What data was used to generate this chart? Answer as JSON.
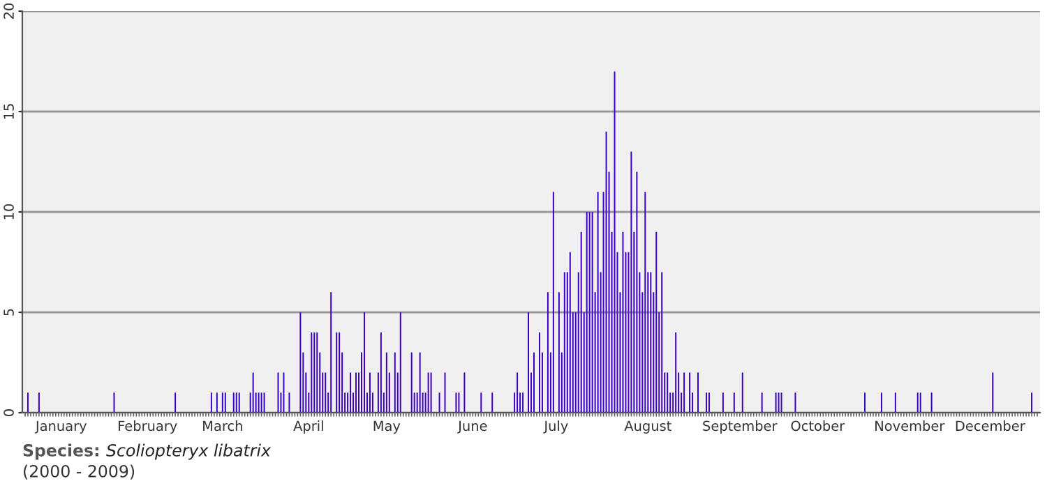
{
  "chart_data": {
    "type": "bar",
    "color": "#3a00c4",
    "categories": [
      null,
      null,
      null,
      null,
      null,
      null,
      null,
      null,
      null,
      null,
      null,
      null,
      null,
      "January",
      null,
      null,
      null,
      null,
      null,
      null,
      null,
      null,
      null,
      null,
      null,
      null,
      null,
      null,
      null,
      null,
      null,
      null,
      null,
      null,
      null,
      null,
      null,
      null,
      null,
      null,
      null,
      null,
      null,
      null,
      "February",
      null,
      null,
      null,
      null,
      null,
      null,
      null,
      null,
      null,
      null,
      null,
      null,
      null,
      null,
      null,
      null,
      null,
      null,
      null,
      null,
      null,
      null,
      null,
      null,
      null,
      null,
      "March",
      null,
      null,
      null,
      null,
      null,
      null,
      null,
      null,
      null,
      null,
      null,
      null,
      null,
      null,
      null,
      null,
      null,
      null,
      null,
      null,
      null,
      null,
      null,
      null,
      null,
      null,
      null,
      null,
      null,
      null,
      "April",
      null,
      null,
      null,
      null,
      null,
      null,
      null,
      null,
      null,
      null,
      null,
      null,
      null,
      null,
      null,
      null,
      null,
      null,
      null,
      null,
      null,
      null,
      null,
      null,
      null,
      null,
      null,
      "May",
      null,
      null,
      null,
      null,
      null,
      null,
      null,
      null,
      null,
      null,
      null,
      null,
      null,
      null,
      null,
      null,
      null,
      null,
      null,
      null,
      null,
      null,
      null,
      null,
      null,
      null,
      null,
      null,
      null,
      null,
      "June",
      null,
      null,
      null,
      null,
      null,
      null,
      null,
      null,
      null,
      null,
      null,
      null,
      null,
      null,
      null,
      null,
      null,
      null,
      null,
      null,
      null,
      null,
      null,
      null,
      null,
      null,
      null,
      null,
      null,
      "July",
      null,
      null,
      null,
      null,
      null,
      null,
      null,
      null,
      null,
      null,
      null,
      null,
      null,
      null,
      null,
      null,
      null,
      null,
      null,
      null,
      null,
      null,
      null,
      null,
      null,
      null,
      null,
      null,
      null,
      null,
      null,
      null,
      "August",
      null,
      null,
      null,
      null,
      null,
      null,
      null,
      null,
      null,
      null,
      null,
      null,
      null,
      null,
      null,
      null,
      null,
      null,
      null,
      null,
      null,
      null,
      null,
      null,
      null,
      null,
      null,
      null,
      null,
      null,
      null,
      null,
      "September",
      null,
      null,
      null,
      null,
      null,
      null,
      null,
      null,
      null,
      null,
      null,
      null,
      null,
      null,
      null,
      null,
      null,
      null,
      null,
      null,
      null,
      null,
      null,
      null,
      null,
      null,
      null,
      "October",
      null,
      null,
      null,
      null,
      null,
      null,
      null,
      null,
      null,
      null,
      null,
      null,
      null,
      null,
      null,
      null,
      null,
      null,
      null,
      null,
      null,
      null,
      null,
      null,
      null,
      null,
      null,
      null,
      null,
      null,
      null,
      null,
      "November",
      null,
      null,
      null,
      null,
      null,
      null,
      null,
      null,
      null,
      null,
      null,
      null,
      null,
      null,
      null,
      null,
      null,
      null,
      null,
      null,
      null,
      null,
      null,
      null,
      null,
      null,
      null,
      null,
      "December",
      null,
      null,
      null,
      null,
      null,
      null,
      null,
      null,
      null,
      null,
      null,
      null,
      null,
      null,
      null,
      null,
      null
    ],
    "values": [
      0,
      1,
      0,
      0,
      0,
      1,
      0,
      0,
      0,
      0,
      0,
      0,
      0,
      0,
      0,
      0,
      0,
      0,
      0,
      0,
      0,
      0,
      0,
      0,
      0,
      0,
      0,
      0,
      0,
      0,
      0,
      0,
      1,
      0,
      0,
      0,
      0,
      0,
      0,
      0,
      0,
      0,
      0,
      0,
      0,
      0,
      0,
      0,
      0,
      0,
      0,
      0,
      0,
      0,
      1,
      0,
      0,
      0,
      0,
      0,
      0,
      0,
      0,
      0,
      0,
      0,
      0,
      1,
      0,
      1,
      0,
      1,
      1,
      0,
      0,
      1,
      1,
      1,
      0,
      0,
      0,
      1,
      2,
      1,
      1,
      1,
      1,
      0,
      0,
      0,
      0,
      2,
      1,
      2,
      0,
      1,
      0,
      0,
      0,
      5,
      3,
      2,
      1,
      4,
      4,
      4,
      3,
      2,
      2,
      1,
      6,
      0,
      4,
      4,
      3,
      1,
      1,
      2,
      1,
      2,
      2,
      3,
      5,
      1,
      2,
      1,
      0,
      2,
      4,
      1,
      3,
      2,
      0,
      3,
      2,
      5,
      0,
      0,
      0,
      3,
      1,
      1,
      3,
      1,
      1,
      2,
      2,
      0,
      0,
      1,
      0,
      2,
      0,
      0,
      0,
      1,
      1,
      0,
      2,
      0,
      0,
      0,
      0,
      0,
      1,
      0,
      0,
      0,
      1,
      0,
      0,
      0,
      0,
      0,
      0,
      0,
      1,
      2,
      1,
      1,
      0,
      5,
      2,
      3,
      0,
      4,
      3,
      0,
      6,
      3,
      11,
      0,
      6,
      3,
      7,
      7,
      8,
      5,
      5,
      7,
      9,
      5,
      10,
      10,
      10,
      6,
      11,
      7,
      11,
      14,
      12,
      9,
      17,
      8,
      6,
      9,
      8,
      8,
      13,
      9,
      12,
      7,
      6,
      11,
      7,
      7,
      6,
      9,
      5,
      7,
      2,
      2,
      1,
      1,
      4,
      2,
      1,
      2,
      0,
      2,
      1,
      0,
      2,
      0,
      0,
      1,
      1,
      0,
      0,
      0,
      0,
      1,
      0,
      0,
      0,
      1,
      0,
      0,
      2,
      0,
      0,
      0,
      0,
      0,
      0,
      1,
      0,
      0,
      0,
      0,
      1,
      1,
      1,
      0,
      0,
      0,
      0,
      1,
      0,
      0,
      0,
      0,
      0,
      0,
      0,
      0,
      0,
      0,
      0,
      0,
      0,
      0,
      0,
      0,
      0,
      0,
      0,
      0,
      0,
      0,
      0,
      0,
      1,
      0,
      0,
      0,
      0,
      0,
      1,
      0,
      0,
      0,
      0,
      1,
      0,
      0,
      0,
      0,
      0,
      0,
      0,
      1,
      1,
      0,
      0,
      0,
      1,
      0,
      0,
      0,
      0,
      0,
      0,
      0,
      0,
      0,
      0,
      0,
      0,
      0,
      0,
      0,
      0,
      0,
      0,
      0,
      0,
      0,
      2,
      0,
      0,
      0,
      0,
      0,
      0,
      0,
      0,
      0,
      0,
      0,
      0,
      0,
      1,
      0,
      0
    ],
    "ylim": [
      0,
      20
    ],
    "yticks": [
      0,
      5,
      10,
      15,
      20
    ],
    "grid": "y",
    "annotations": [
      "Species:",
      "Scoliopteryx libatrix",
      "(2000 - 2009)"
    ]
  }
}
